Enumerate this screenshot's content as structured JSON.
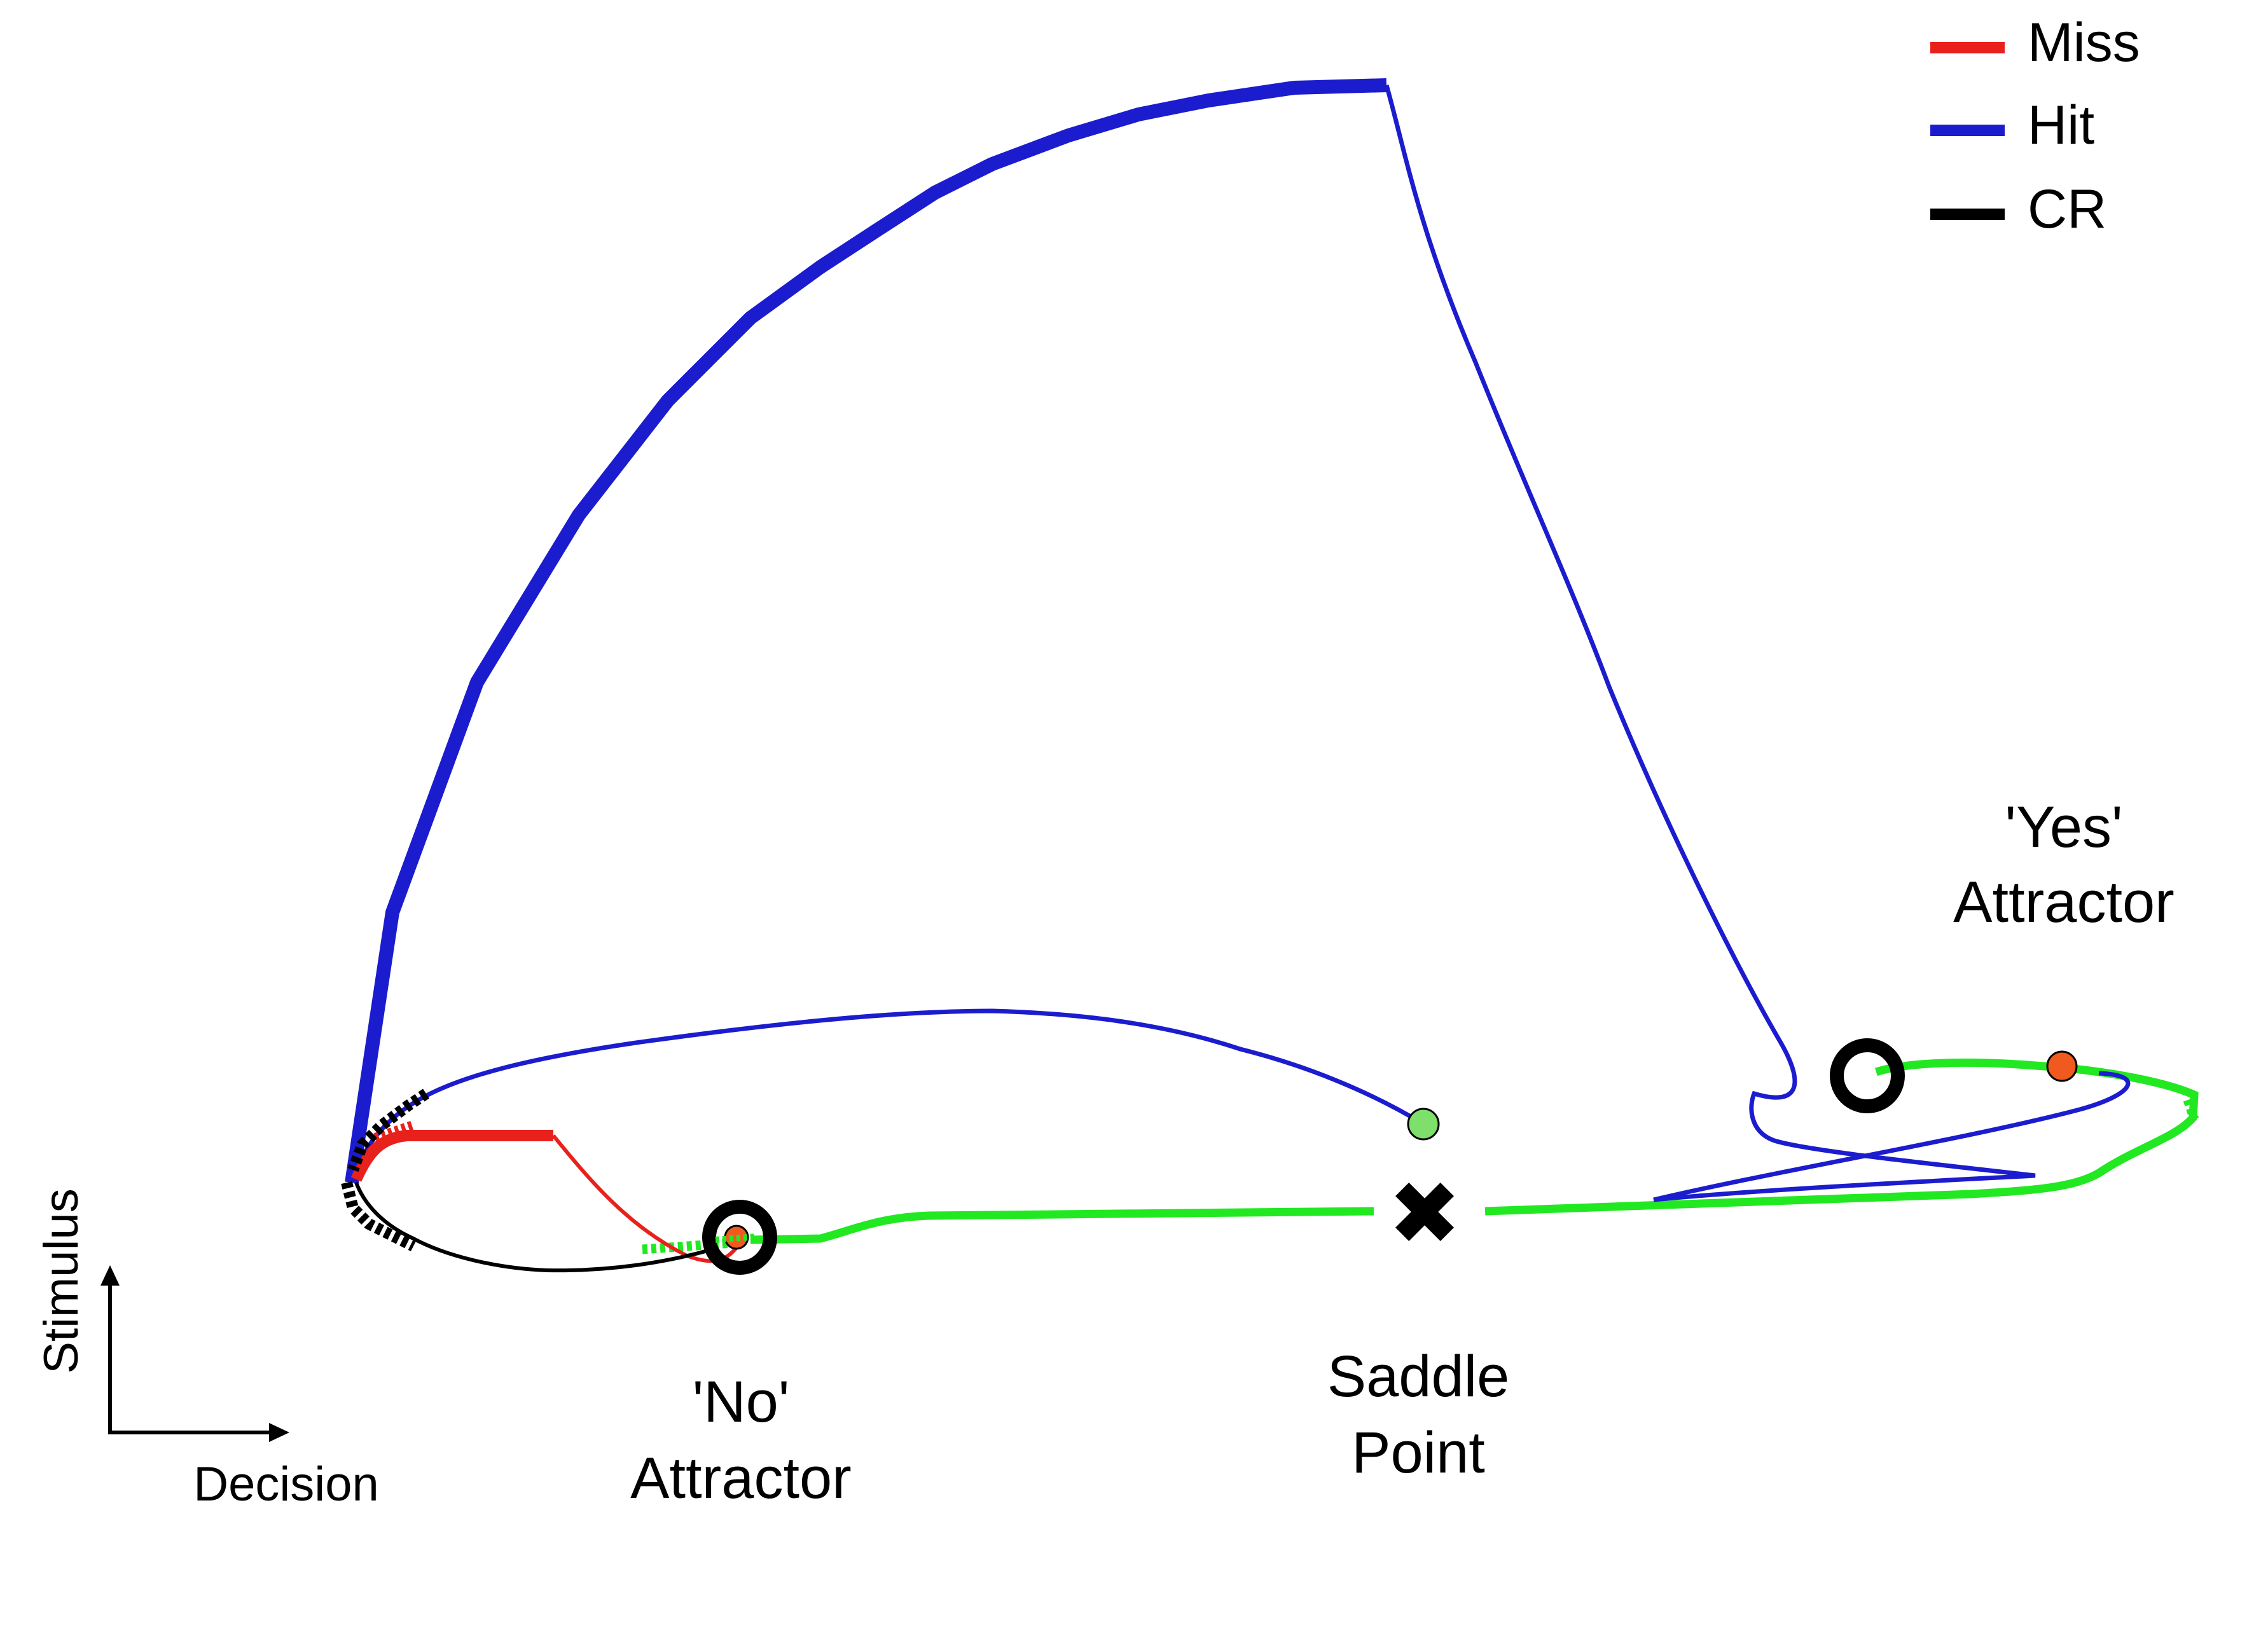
{
  "legend": {
    "items": [
      {
        "label": "Miss",
        "color": "#e8211d"
      },
      {
        "label": "Hit",
        "color": "#1c1ccf"
      },
      {
        "label": "CR",
        "color": "#000000"
      }
    ]
  },
  "axes": {
    "x_label": "Decision",
    "y_label": "Stimulus"
  },
  "labels": {
    "no_attractor": {
      "line1": "'No'",
      "line2": "Attractor"
    },
    "yes_attractor": {
      "line1": "'Yes'",
      "line2": "Attractor"
    },
    "saddle_point": {
      "line1": "Saddle",
      "line2": "Point"
    }
  },
  "markers": {
    "attractor_ring": "ring-icon",
    "saddle": "cross-icon",
    "start_point_color": "#7ee06a",
    "state_dot_color": "#f05a1e"
  },
  "colors": {
    "manifold": "#22e822",
    "hit": "#1c1ccf",
    "miss": "#e8211d",
    "cr": "#000000"
  }
}
